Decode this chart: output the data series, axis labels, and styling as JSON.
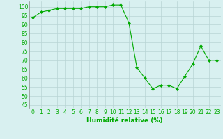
{
  "x": [
    0,
    1,
    2,
    3,
    4,
    5,
    6,
    7,
    8,
    9,
    10,
    11,
    12,
    13,
    14,
    15,
    16,
    17,
    18,
    19,
    20,
    21,
    22,
    23
  ],
  "y": [
    94,
    97,
    98,
    99,
    99,
    99,
    99,
    100,
    100,
    100,
    101,
    101,
    91,
    66,
    60,
    54,
    56,
    56,
    54,
    61,
    68,
    78,
    70,
    70
  ],
  "line_color": "#00aa00",
  "marker": "D",
  "marker_size": 2,
  "bg_color": "#d8f0f0",
  "grid_color": "#b8d4d4",
  "xlabel": "Humidité relative (%)",
  "xlabel_color": "#00aa00",
  "xlabel_fontsize": 6.5,
  "ylabel_ticks": [
    45,
    50,
    55,
    60,
    65,
    70,
    75,
    80,
    85,
    90,
    95,
    100
  ],
  "ylim": [
    43,
    103
  ],
  "xlim": [
    -0.5,
    23.5
  ],
  "tick_color": "#00aa00",
  "tick_fontsize": 5.5
}
